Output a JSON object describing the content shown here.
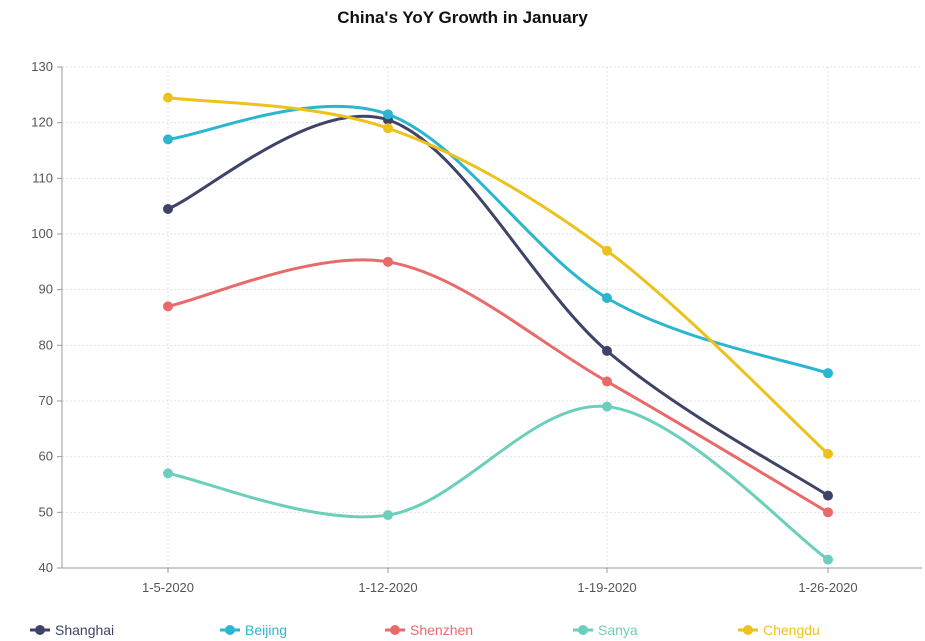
{
  "chart_data": {
    "type": "line",
    "title": "China's YoY Growth in January",
    "xlabel": "",
    "ylabel": "",
    "categories": [
      "1-5-2020",
      "1-12-2020",
      "1-19-2020",
      "1-26-2020"
    ],
    "ylim": [
      40,
      130
    ],
    "yticks": [
      40,
      50,
      60,
      70,
      80,
      90,
      100,
      110,
      120,
      130
    ],
    "grid": true,
    "legend_position": "bottom",
    "series": [
      {
        "name": "Shanghai",
        "color": "#3d4468",
        "values": [
          104.5,
          120.5,
          79,
          53
        ]
      },
      {
        "name": "Beijing",
        "color": "#2ab6d1",
        "values": [
          117,
          121.5,
          88.5,
          75
        ]
      },
      {
        "name": "Shenzhen",
        "color": "#e96a6a",
        "values": [
          87,
          95,
          73.5,
          50
        ]
      },
      {
        "name": "Sanya",
        "color": "#6ccfbb",
        "values": [
          57,
          49.5,
          69,
          41.5
        ]
      },
      {
        "name": "Chengdu",
        "color": "#eec21c",
        "values": [
          124.5,
          119,
          97,
          60.5
        ]
      }
    ]
  }
}
